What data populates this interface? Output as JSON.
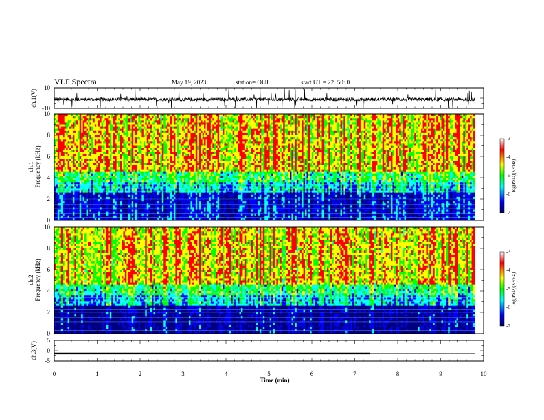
{
  "header": {
    "title": "VLF Spectra",
    "date": "May 19, 2023",
    "station": "station= OUJ",
    "start": "start  UT =   22: 50: 0"
  },
  "chart_data": [
    {
      "name": "ch1-waveform",
      "type": "line",
      "ylabel": "ch.1(V)",
      "ylim": [
        -10,
        10
      ],
      "yticks": [
        "10",
        "-10"
      ],
      "xlim": [
        0,
        10
      ],
      "baseline": -1.2,
      "spread": 1.6,
      "data_end_min": 9.8
    },
    {
      "name": "ch1-spectrogram",
      "type": "heatmap",
      "ylabel_top": "ch.1",
      "ylabel": "Frequency (kHz)",
      "ylim": [
        0,
        10
      ],
      "yticks": [
        "0",
        "2",
        "4",
        "6",
        "8",
        "10"
      ],
      "xlim": [
        0,
        10
      ],
      "data_end_min": 9.8,
      "colorbar": {
        "label": "log(PSD)(V²/Hz)",
        "range": [
          -7,
          -3
        ],
        "ticks": [
          "-3",
          "-4",
          "-5",
          "-6",
          "-7"
        ]
      }
    },
    {
      "name": "ch2-spectrogram",
      "type": "heatmap",
      "ylabel_top": "ch.2",
      "ylabel": "Frequency (kHz)",
      "ylim": [
        0,
        10
      ],
      "yticks": [
        "0",
        "2",
        "4",
        "6",
        "8",
        "10"
      ],
      "xlim": [
        0,
        10
      ],
      "data_end_min": 9.8,
      "colorbar": {
        "label": "log(PSD)(V²/Hz)",
        "range": [
          -7,
          -3
        ],
        "ticks": [
          "-3",
          "-4",
          "-5",
          "-6",
          "-7"
        ]
      }
    },
    {
      "name": "ch3-waveform",
      "type": "line",
      "ylabel": "ch.3(V)",
      "ylim": [
        -5,
        5
      ],
      "yticks": [
        "5",
        "0",
        "-5"
      ],
      "xlim": [
        0,
        10
      ],
      "segments": [
        {
          "from": 0,
          "to": 7.35,
          "value": -1.3,
          "weight": "thick"
        },
        {
          "from": 7.35,
          "to": 9.8,
          "value": -1.3,
          "weight": "thin"
        }
      ]
    }
  ],
  "xaxis": {
    "label": "Time (min)",
    "ticks": [
      "0",
      "1",
      "2",
      "3",
      "4",
      "5",
      "6",
      "7",
      "8",
      "9",
      "10"
    ]
  },
  "colors": {
    "scale": [
      "#000080",
      "#0000ff",
      "#00ffff",
      "#00ff00",
      "#ffff00",
      "#ff0000",
      "#ffffff"
    ]
  }
}
